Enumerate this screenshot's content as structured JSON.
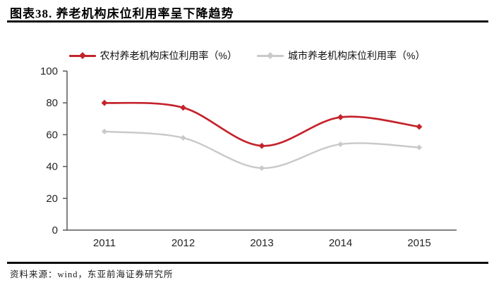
{
  "header": {
    "title": "图表38. 养老机构床位利用率呈下降趋势"
  },
  "footer": {
    "source": "资料来源：wind，东亚前海证券研究所"
  },
  "colors": {
    "accent_red": "#c4232b",
    "series_gray": "#c9c9c9",
    "axis": "#595959",
    "rule_black": "#0d0d0d",
    "background": "#ffffff"
  },
  "chart_data": {
    "type": "line",
    "title": "养老机构床位利用率呈下降趋势",
    "categories": [
      "2011",
      "2012",
      "2013",
      "2014",
      "2015"
    ],
    "series": [
      {
        "name": "农村养老机构床位利用率（%）",
        "values": [
          80,
          77,
          53,
          71,
          65
        ],
        "color": "#c4232b",
        "marker": "diamond"
      },
      {
        "name": "城市养老机构床位利用率（%）",
        "values": [
          62,
          58,
          39,
          54,
          52
        ],
        "color": "#c9c9c9",
        "marker": "diamond"
      }
    ],
    "xlabel": "",
    "ylabel": "",
    "ylim": [
      0,
      100
    ],
    "y_ticks": [
      0,
      20,
      40,
      60,
      80,
      100
    ],
    "grid": false,
    "line_style": "smooth",
    "legend_position": "top",
    "axis_color": "#595959"
  }
}
